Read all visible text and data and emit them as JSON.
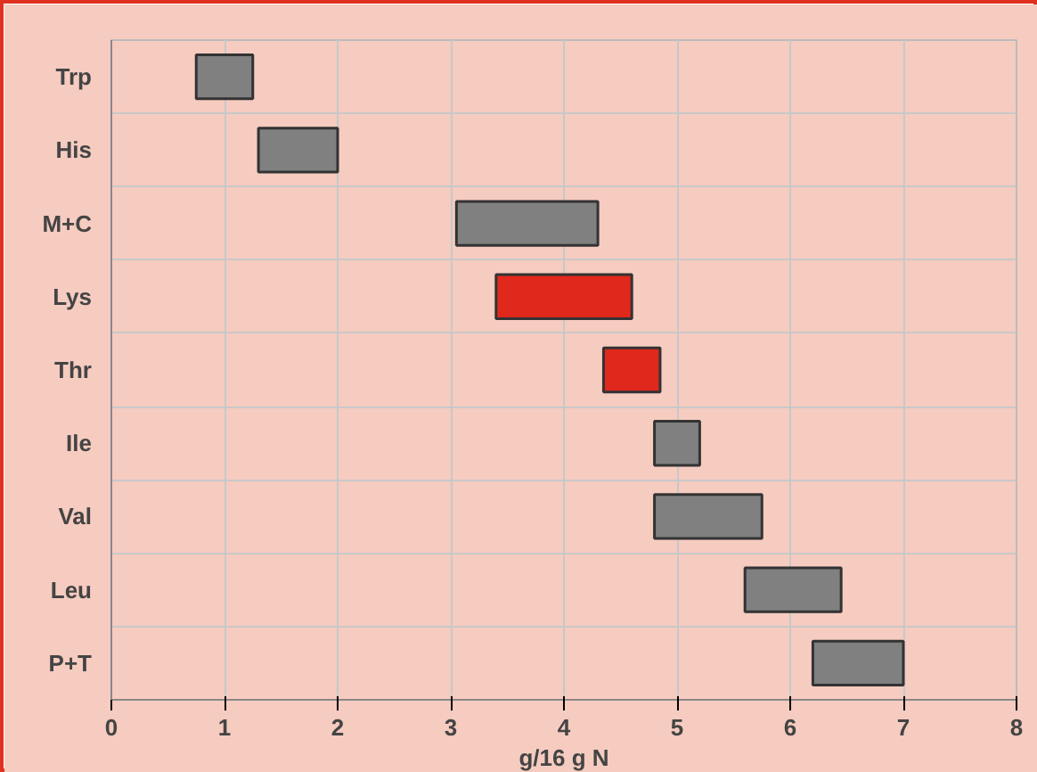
{
  "chart_data": {
    "type": "bar",
    "orientation": "horizontal",
    "xlabel": "g/16 g N",
    "categories": [
      "Trp",
      "His",
      "M+C",
      "Lys",
      "Thr",
      "Ile",
      "Val",
      "Leu",
      "P+T"
    ],
    "base": [
      0.75,
      1.3,
      3.05,
      3.4,
      4.35,
      4.8,
      4.8,
      5.6,
      6.2
    ],
    "values": [
      0.5,
      0.7,
      1.25,
      1.2,
      0.5,
      0.4,
      0.95,
      0.85,
      0.8
    ],
    "colors": [
      "#808080",
      "#808080",
      "#808080",
      "#e0281c",
      "#e0281c",
      "#808080",
      "#808080",
      "#808080",
      "#808080"
    ],
    "xlim": [
      0,
      8
    ],
    "xticks": [
      0,
      1,
      2,
      3,
      4,
      5,
      6,
      7,
      8
    ],
    "grid": true
  }
}
